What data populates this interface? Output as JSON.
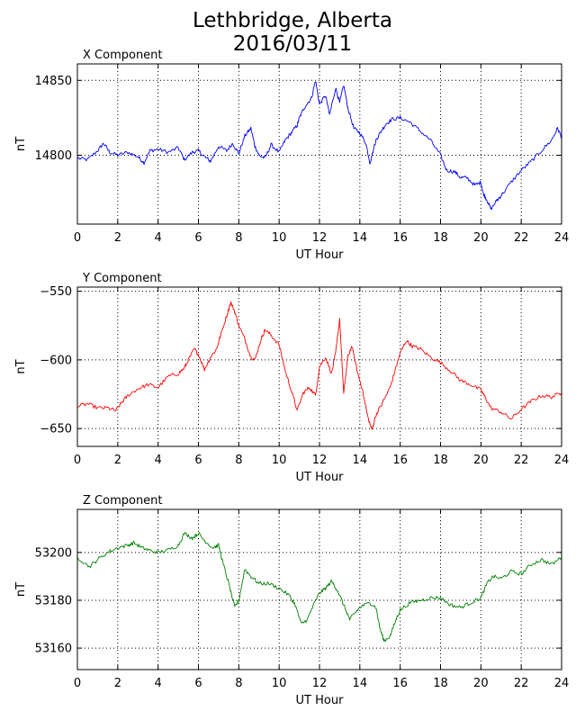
{
  "figure": {
    "title_line1": "Lethbridge, Alberta",
    "title_line2": "2016/03/11"
  },
  "chart_data": [
    {
      "type": "line",
      "title": "X Component",
      "xlabel": "UT Hour",
      "ylabel": "nT",
      "color": "#0000ff",
      "xlim": [
        0,
        24
      ],
      "ylim": [
        14754,
        14861
      ],
      "xticks": [
        0,
        2,
        4,
        6,
        8,
        10,
        12,
        14,
        16,
        18,
        20,
        22,
        24
      ],
      "yticks": [
        14800,
        14850
      ],
      "grid": true,
      "points": [
        [
          0,
          14798
        ],
        [
          0.5,
          14797
        ],
        [
          1,
          14803
        ],
        [
          1.3,
          14808
        ],
        [
          1.6,
          14802
        ],
        [
          2,
          14800
        ],
        [
          2.5,
          14802
        ],
        [
          3,
          14799
        ],
        [
          3.3,
          14795
        ],
        [
          3.6,
          14803
        ],
        [
          4,
          14804
        ],
        [
          4.5,
          14802
        ],
        [
          5,
          14805
        ],
        [
          5.3,
          14797
        ],
        [
          5.7,
          14802
        ],
        [
          6,
          14803
        ],
        [
          6.3,
          14799
        ],
        [
          6.6,
          14796
        ],
        [
          7,
          14806
        ],
        [
          7.4,
          14803
        ],
        [
          7.7,
          14808
        ],
        [
          8,
          14801
        ],
        [
          8.3,
          14813
        ],
        [
          8.6,
          14818
        ],
        [
          8.8,
          14806
        ],
        [
          9,
          14800
        ],
        [
          9.3,
          14798
        ],
        [
          9.6,
          14807
        ],
        [
          10,
          14802
        ],
        [
          10.3,
          14810
        ],
        [
          10.6,
          14815
        ],
        [
          10.9,
          14820
        ],
        [
          11,
          14825
        ],
        [
          11.3,
          14833
        ],
        [
          11.6,
          14838
        ],
        [
          11.8,
          14850
        ],
        [
          12,
          14834
        ],
        [
          12.3,
          14840
        ],
        [
          12.5,
          14827
        ],
        [
          12.8,
          14845
        ],
        [
          13,
          14835
        ],
        [
          13.2,
          14847
        ],
        [
          13.4,
          14832
        ],
        [
          13.7,
          14818
        ],
        [
          14,
          14815
        ],
        [
          14.3,
          14808
        ],
        [
          14.5,
          14795
        ],
        [
          14.8,
          14810
        ],
        [
          15,
          14815
        ],
        [
          15.3,
          14821
        ],
        [
          15.6,
          14824
        ],
        [
          16,
          14825
        ],
        [
          16.5,
          14822
        ],
        [
          17,
          14816
        ],
        [
          17.5,
          14810
        ],
        [
          18,
          14800
        ],
        [
          18.3,
          14790
        ],
        [
          18.7,
          14789
        ],
        [
          19,
          14785
        ],
        [
          19.3,
          14785
        ],
        [
          19.7,
          14780
        ],
        [
          20,
          14782
        ],
        [
          20.1,
          14775
        ],
        [
          20.3,
          14770
        ],
        [
          20.5,
          14764
        ],
        [
          20.8,
          14770
        ],
        [
          21,
          14773
        ],
        [
          21.5,
          14782
        ],
        [
          22,
          14790
        ],
        [
          22.5,
          14796
        ],
        [
          23,
          14803
        ],
        [
          23.5,
          14810
        ],
        [
          23.8,
          14818
        ],
        [
          24,
          14812
        ]
      ]
    },
    {
      "type": "line",
      "title": "Y Component",
      "xlabel": "UT Hour",
      "ylabel": "nT",
      "color": "#ff0000",
      "xlim": [
        0,
        24
      ],
      "ylim": [
        -663,
        -547
      ],
      "xticks": [
        0,
        2,
        4,
        6,
        8,
        10,
        12,
        14,
        16,
        18,
        20,
        22,
        24
      ],
      "yticks": [
        -550,
        -600,
        -650
      ],
      "grid": true,
      "points": [
        [
          0,
          -634
        ],
        [
          0.5,
          -632
        ],
        [
          1,
          -635
        ],
        [
          1.5,
          -635
        ],
        [
          1.9,
          -637
        ],
        [
          2.2,
          -631
        ],
        [
          2.5,
          -626
        ],
        [
          3,
          -621
        ],
        [
          3.5,
          -618
        ],
        [
          4,
          -620
        ],
        [
          4.5,
          -612
        ],
        [
          5,
          -610
        ],
        [
          5.3,
          -606
        ],
        [
          5.5,
          -600
        ],
        [
          5.8,
          -592
        ],
        [
          6,
          -596
        ],
        [
          6.3,
          -607
        ],
        [
          6.6,
          -598
        ],
        [
          6.9,
          -592
        ],
        [
          7.1,
          -582
        ],
        [
          7.4,
          -568
        ],
        [
          7.6,
          -558
        ],
        [
          7.8,
          -565
        ],
        [
          8,
          -575
        ],
        [
          8.3,
          -585
        ],
        [
          8.6,
          -598
        ],
        [
          8.8,
          -600
        ],
        [
          9.1,
          -585
        ],
        [
          9.3,
          -578
        ],
        [
          9.6,
          -582
        ],
        [
          10,
          -589
        ],
        [
          10.3,
          -608
        ],
        [
          10.6,
          -622
        ],
        [
          10.9,
          -637
        ],
        [
          11.2,
          -624
        ],
        [
          11.5,
          -620
        ],
        [
          11.8,
          -626
        ],
        [
          12,
          -605
        ],
        [
          12.3,
          -598
        ],
        [
          12.6,
          -610
        ],
        [
          12.8,
          -595
        ],
        [
          13,
          -570
        ],
        [
          13.2,
          -625
        ],
        [
          13.4,
          -598
        ],
        [
          13.6,
          -590
        ],
        [
          13.9,
          -610
        ],
        [
          14.1,
          -620
        ],
        [
          14.4,
          -642
        ],
        [
          14.6,
          -651
        ],
        [
          14.8,
          -640
        ],
        [
          15.1,
          -632
        ],
        [
          15.5,
          -620
        ],
        [
          15.8,
          -605
        ],
        [
          16,
          -595
        ],
        [
          16.3,
          -586
        ],
        [
          16.6,
          -590
        ],
        [
          17,
          -592
        ],
        [
          17.5,
          -598
        ],
        [
          18,
          -602
        ],
        [
          18.5,
          -608
        ],
        [
          19,
          -615
        ],
        [
          19.5,
          -618
        ],
        [
          20,
          -622
        ],
        [
          20.2,
          -627
        ],
        [
          20.5,
          -635
        ],
        [
          21,
          -638
        ],
        [
          21.5,
          -643
        ],
        [
          22,
          -636
        ],
        [
          22.5,
          -630
        ],
        [
          23,
          -626
        ],
        [
          23.5,
          -627
        ],
        [
          24,
          -624
        ]
      ]
    },
    {
      "type": "line",
      "title": "Z Component",
      "xlabel": "UT Hour",
      "ylabel": "nT",
      "color": "#008000",
      "xlim": [
        0,
        24
      ],
      "ylim": [
        53151,
        53218
      ],
      "xticks": [
        0,
        2,
        4,
        6,
        8,
        10,
        12,
        14,
        16,
        18,
        20,
        22,
        24
      ],
      "yticks": [
        53200,
        53180,
        53160
      ],
      "grid": true,
      "points": [
        [
          0,
          53198
        ],
        [
          0.6,
          53194
        ],
        [
          1,
          53197
        ],
        [
          1.5,
          53200
        ],
        [
          2,
          53202
        ],
        [
          2.5,
          53203
        ],
        [
          2.8,
          53204
        ],
        [
          3.2,
          53202
        ],
        [
          3.5,
          53201
        ],
        [
          4,
          53200
        ],
        [
          4.5,
          53201
        ],
        [
          5,
          53203
        ],
        [
          5.3,
          53208
        ],
        [
          5.7,
          53206
        ],
        [
          6,
          53208
        ],
        [
          6.3,
          53205
        ],
        [
          6.7,
          53202
        ],
        [
          7,
          53203
        ],
        [
          7.2,
          53196
        ],
        [
          7.5,
          53187
        ],
        [
          7.8,
          53177
        ],
        [
          8,
          53180
        ],
        [
          8.3,
          53193
        ],
        [
          8.6,
          53190
        ],
        [
          9,
          53187
        ],
        [
          9.5,
          53187
        ],
        [
          10,
          53185
        ],
        [
          10.5,
          53182
        ],
        [
          10.8,
          53178
        ],
        [
          11.1,
          53170
        ],
        [
          11.4,
          53172
        ],
        [
          11.7,
          53178
        ],
        [
          12,
          53183
        ],
        [
          12.3,
          53185
        ],
        [
          12.6,
          53188
        ],
        [
          12.9,
          53184
        ],
        [
          13.2,
          53178
        ],
        [
          13.5,
          53172
        ],
        [
          13.8,
          53175
        ],
        [
          14,
          53177
        ],
        [
          14.5,
          53179
        ],
        [
          14.8,
          53177
        ],
        [
          15,
          53168
        ],
        [
          15.2,
          53163
        ],
        [
          15.5,
          53165
        ],
        [
          15.8,
          53172
        ],
        [
          16,
          53176
        ],
        [
          16.5,
          53179
        ],
        [
          17,
          53180
        ],
        [
          17.5,
          53181
        ],
        [
          18,
          53181
        ],
        [
          18.5,
          53178
        ],
        [
          19,
          53177
        ],
        [
          19.5,
          53179
        ],
        [
          20,
          53181
        ],
        [
          20.3,
          53187
        ],
        [
          20.6,
          53190
        ],
        [
          21,
          53189
        ],
        [
          21.5,
          53192
        ],
        [
          22,
          53191
        ],
        [
          22.5,
          53195
        ],
        [
          23,
          53197
        ],
        [
          23.5,
          53195
        ],
        [
          24,
          53198
        ]
      ]
    }
  ]
}
